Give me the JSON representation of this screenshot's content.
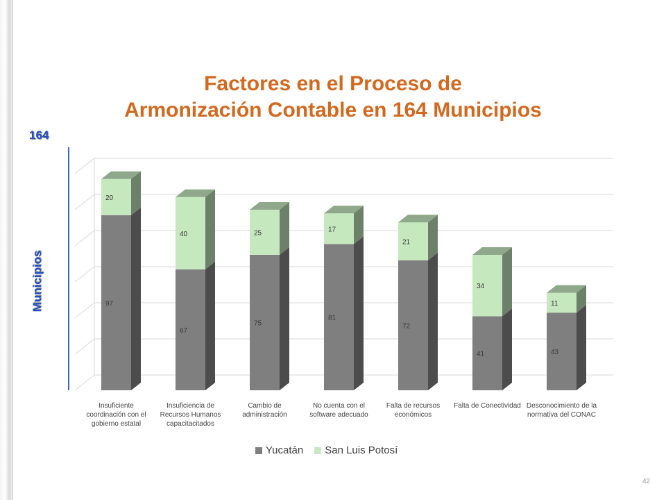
{
  "slide": {
    "title_line1": "Factores en el Proceso de",
    "title_line2": "Armonización Contable en 164 Municipios",
    "y_top_label": "164",
    "y_axis_name": "Municipios",
    "page_number": "42"
  },
  "chart_data": {
    "type": "bar",
    "stacked": true,
    "three_d": true,
    "title": "Factores en el Proceso de Armonización Contable en 164 Municipios",
    "ylabel": "Municipios",
    "ylim": [
      0,
      120
    ],
    "grid": true,
    "legend_position": "bottom",
    "categories": [
      "Insuficiente coordinación con el gobierno estatal",
      "Insuficiencia de Recursos Humanos capacitacitados",
      "Cambio de administración",
      "No cuenta con el software adecuado",
      "Falta de recursos económicos",
      "Falta de Conectividad",
      "Desconocimiento de la normativa del CONAC"
    ],
    "series": [
      {
        "name": "Yucatán",
        "values": [
          97,
          67,
          75,
          81,
          72,
          41,
          43
        ],
        "color": "#7f7f7f"
      },
      {
        "name": "San Luis Potosí",
        "values": [
          20,
          40,
          25,
          17,
          21,
          34,
          11
        ],
        "color": "#c6e8bf"
      }
    ]
  }
}
